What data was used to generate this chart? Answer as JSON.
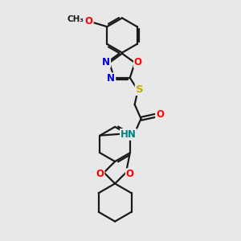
{
  "background_color": "#e8e8e8",
  "line_color": "#1a1a1a",
  "bond_width": 1.6,
  "atom_colors": {
    "N": "#0000cc",
    "O": "#ff0000",
    "S": "#ccaa00",
    "C": "#1a1a1a",
    "H": "#008080"
  },
  "figsize": [
    3.0,
    3.0
  ],
  "dpi": 100
}
